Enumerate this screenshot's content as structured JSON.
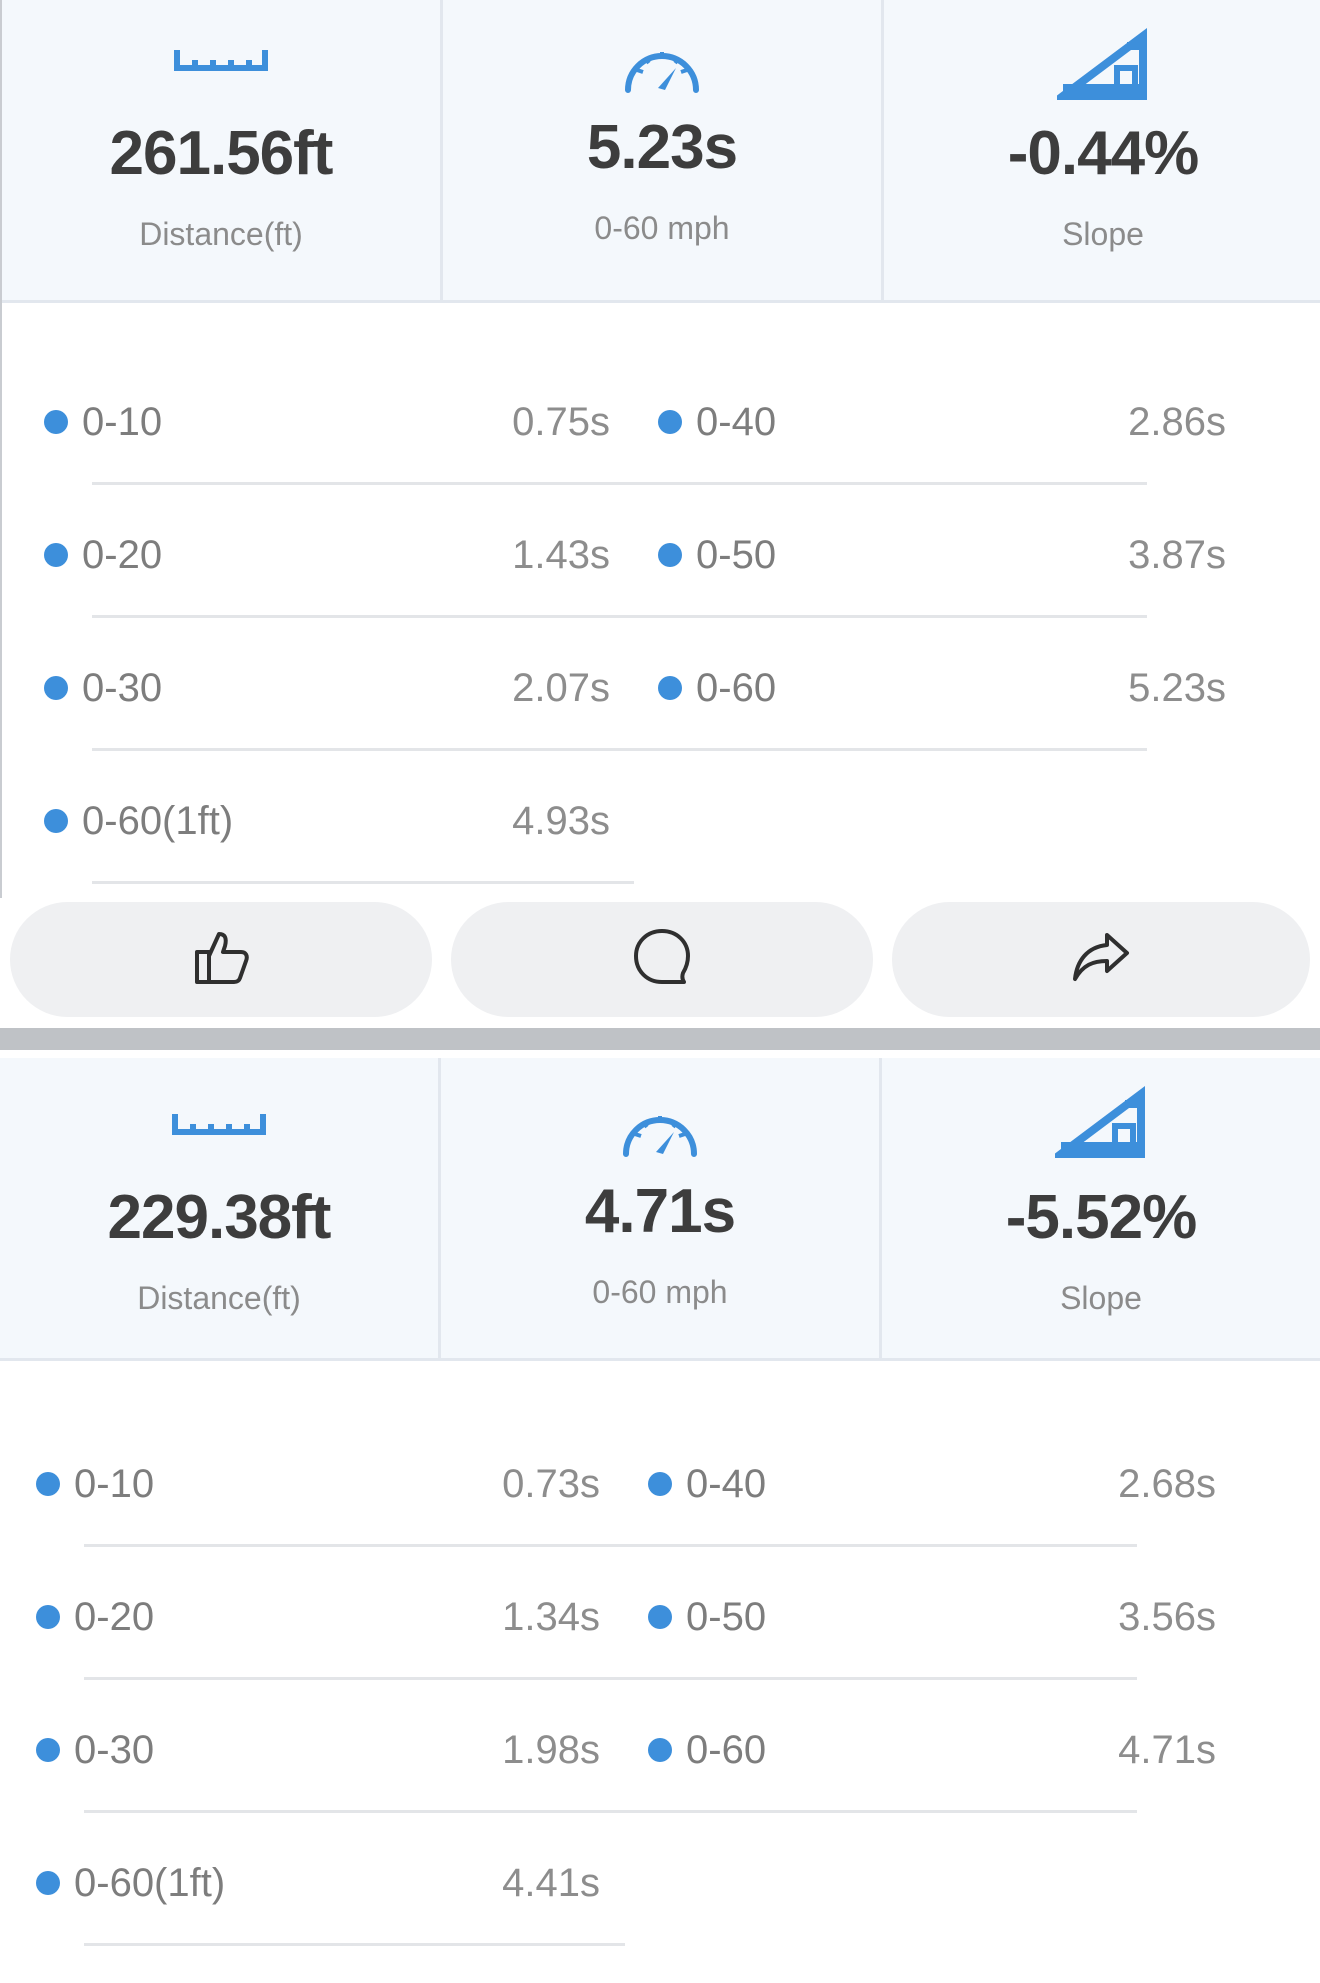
{
  "posts": [
    {
      "stats": {
        "distance": {
          "icon": "ruler-icon",
          "value": "261.56ft",
          "label": "Distance(ft)"
        },
        "time": {
          "icon": "speedometer-icon",
          "value": "5.23s",
          "label": "0-60 mph"
        },
        "slope": {
          "icon": "slope-icon",
          "value": "-0.44%",
          "label": "Slope"
        }
      },
      "splits_left": [
        {
          "label": "0-10",
          "value": "0.75s"
        },
        {
          "label": "0-20",
          "value": "1.43s"
        },
        {
          "label": "0-30",
          "value": "2.07s"
        },
        {
          "label": "0-60(1ft)",
          "value": "4.93s"
        }
      ],
      "splits_right": [
        {
          "label": "0-40",
          "value": "2.86s"
        },
        {
          "label": "0-50",
          "value": "3.87s"
        },
        {
          "label": "0-60",
          "value": "5.23s"
        }
      ]
    },
    {
      "stats": {
        "distance": {
          "icon": "ruler-icon",
          "value": "229.38ft",
          "label": "Distance(ft)"
        },
        "time": {
          "icon": "speedometer-icon",
          "value": "4.71s",
          "label": "0-60 mph"
        },
        "slope": {
          "icon": "slope-icon",
          "value": "-5.52%",
          "label": "Slope"
        }
      },
      "splits_left": [
        {
          "label": "0-10",
          "value": "0.73s"
        },
        {
          "label": "0-20",
          "value": "1.34s"
        },
        {
          "label": "0-30",
          "value": "1.98s"
        },
        {
          "label": "0-60(1ft)",
          "value": "4.41s"
        }
      ],
      "splits_right": [
        {
          "label": "0-40",
          "value": "2.68s"
        },
        {
          "label": "0-50",
          "value": "3.56s"
        },
        {
          "label": "0-60",
          "value": "4.71s"
        }
      ]
    }
  ],
  "actions": {
    "like_icon": "thumbs-up-icon",
    "comment_icon": "comment-icon",
    "share_icon": "share-icon"
  },
  "colors": {
    "accent": "#3d8fdb",
    "value_text": "#3d3d3d",
    "muted_text": "#8b8b8b",
    "stats_bg": "#f4f8fc",
    "pill_bg": "#eff0f2"
  }
}
